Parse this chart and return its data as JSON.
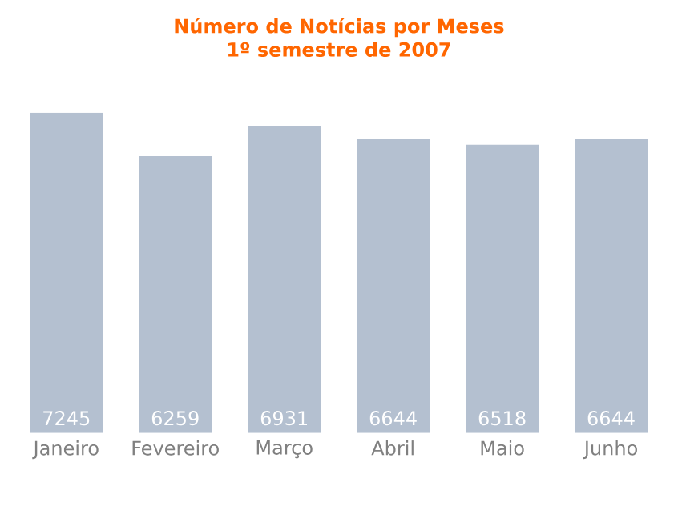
{
  "chart_data": {
    "type": "bar",
    "title": "Número de Notícias por Meses",
    "subtitle": "1º semestre de 2007",
    "categories": [
      "Janeiro",
      "Fevereiro",
      "Março",
      "Abril",
      "Maio",
      "Junho"
    ],
    "values": [
      7245,
      6259,
      6931,
      6644,
      6518,
      6644
    ],
    "color": "#b4c0d0",
    "data_labels": true
  }
}
